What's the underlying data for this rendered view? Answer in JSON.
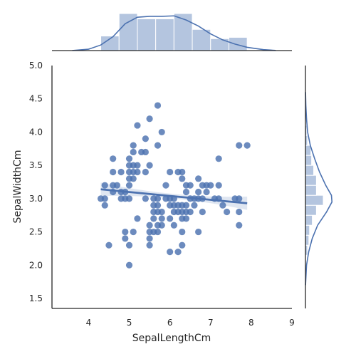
{
  "chart_data": {
    "type": "scatter",
    "kind": "jointplot-regression",
    "xlabel": "SepalLengthCm",
    "ylabel": "SepalWidthCm",
    "xlim": [
      3.1,
      9.0
    ],
    "ylim": [
      1.35,
      5.0
    ],
    "xticks": [
      "4",
      "5",
      "6",
      "7",
      "8",
      "9"
    ],
    "yticks": [
      "1.5",
      "2.0",
      "2.5",
      "3.0",
      "3.5",
      "4.0",
      "4.5",
      "5.0"
    ],
    "grid": false,
    "colors": {
      "points": "#4c72b0",
      "line": "#4c72b0",
      "hist": "#a7bbd9",
      "axes": "#262626"
    },
    "points": [
      [
        4.3,
        3.0
      ],
      [
        4.4,
        2.9
      ],
      [
        4.4,
        3.0
      ],
      [
        4.4,
        3.2
      ],
      [
        4.5,
        2.3
      ],
      [
        4.6,
        3.1
      ],
      [
        4.6,
        3.4
      ],
      [
        4.6,
        3.6
      ],
      [
        4.6,
        3.2
      ],
      [
        4.7,
        3.2
      ],
      [
        4.8,
        3.0
      ],
      [
        4.8,
        3.4
      ],
      [
        4.8,
        3.1
      ],
      [
        4.9,
        3.0
      ],
      [
        4.9,
        3.1
      ],
      [
        4.9,
        2.4
      ],
      [
        4.9,
        2.5
      ],
      [
        5.0,
        3.6
      ],
      [
        5.0,
        3.4
      ],
      [
        5.0,
        3.0
      ],
      [
        5.0,
        3.3
      ],
      [
        5.0,
        3.5
      ],
      [
        5.0,
        3.2
      ],
      [
        5.0,
        2.0
      ],
      [
        5.0,
        2.3
      ],
      [
        5.1,
        3.5
      ],
      [
        5.1,
        3.8
      ],
      [
        5.1,
        3.7
      ],
      [
        5.1,
        3.3
      ],
      [
        5.1,
        3.4
      ],
      [
        5.1,
        2.5
      ],
      [
        5.2,
        3.5
      ],
      [
        5.2,
        3.4
      ],
      [
        5.2,
        4.1
      ],
      [
        5.2,
        2.7
      ],
      [
        5.3,
        3.7
      ],
      [
        5.4,
        3.9
      ],
      [
        5.4,
        3.7
      ],
      [
        5.4,
        3.4
      ],
      [
        5.4,
        3.0
      ],
      [
        5.5,
        4.2
      ],
      [
        5.5,
        3.5
      ],
      [
        5.5,
        2.3
      ],
      [
        5.5,
        2.4
      ],
      [
        5.5,
        2.6
      ],
      [
        5.5,
        2.5
      ],
      [
        5.6,
        2.9
      ],
      [
        5.6,
        3.0
      ],
      [
        5.6,
        2.5
      ],
      [
        5.6,
        2.7
      ],
      [
        5.6,
        2.8
      ],
      [
        5.7,
        4.4
      ],
      [
        5.7,
        3.8
      ],
      [
        5.7,
        2.8
      ],
      [
        5.7,
        2.6
      ],
      [
        5.7,
        3.0
      ],
      [
        5.7,
        2.9
      ],
      [
        5.7,
        2.5
      ],
      [
        5.8,
        4.0
      ],
      [
        5.8,
        2.7
      ],
      [
        5.8,
        2.6
      ],
      [
        5.8,
        2.8
      ],
      [
        5.9,
        3.0
      ],
      [
        5.9,
        3.2
      ],
      [
        6.0,
        2.2
      ],
      [
        6.0,
        2.9
      ],
      [
        6.0,
        2.7
      ],
      [
        6.0,
        3.4
      ],
      [
        6.0,
        3.0
      ],
      [
        6.1,
        2.8
      ],
      [
        6.1,
        2.9
      ],
      [
        6.1,
        3.0
      ],
      [
        6.1,
        2.6
      ],
      [
        6.2,
        2.2
      ],
      [
        6.2,
        2.9
      ],
      [
        6.2,
        2.8
      ],
      [
        6.2,
        3.4
      ],
      [
        6.3,
        3.3
      ],
      [
        6.3,
        2.5
      ],
      [
        6.3,
        2.3
      ],
      [
        6.3,
        2.7
      ],
      [
        6.3,
        2.9
      ],
      [
        6.3,
        2.8
      ],
      [
        6.3,
        3.4
      ],
      [
        6.4,
        3.2
      ],
      [
        6.4,
        2.9
      ],
      [
        6.4,
        2.7
      ],
      [
        6.4,
        2.8
      ],
      [
        6.4,
        3.1
      ],
      [
        6.5,
        2.8
      ],
      [
        6.5,
        3.0
      ],
      [
        6.5,
        3.2
      ],
      [
        6.6,
        2.9
      ],
      [
        6.6,
        3.0
      ],
      [
        6.7,
        3.1
      ],
      [
        6.7,
        3.0
      ],
      [
        6.7,
        2.5
      ],
      [
        6.7,
        3.3
      ],
      [
        6.8,
        2.8
      ],
      [
        6.8,
        3.0
      ],
      [
        6.8,
        3.2
      ],
      [
        6.9,
        3.1
      ],
      [
        6.9,
        3.2
      ],
      [
        7.0,
        3.2
      ],
      [
        7.1,
        3.0
      ],
      [
        7.2,
        3.6
      ],
      [
        7.2,
        3.2
      ],
      [
        7.2,
        3.0
      ],
      [
        7.3,
        2.9
      ],
      [
        7.4,
        2.8
      ],
      [
        7.6,
        3.0
      ],
      [
        7.7,
        3.8
      ],
      [
        7.7,
        2.6
      ],
      [
        7.7,
        2.8
      ],
      [
        7.7,
        3.0
      ],
      [
        7.9,
        3.8
      ]
    ],
    "regression": {
      "x": [
        4.3,
        7.9
      ],
      "y": [
        3.14,
        2.93
      ],
      "ci_halfwidth_ends": 0.1,
      "ci_halfwidth_mid": 0.035
    },
    "x_hist": {
      "edges": [
        4.3,
        4.75,
        5.2,
        5.65,
        6.1,
        6.55,
        7.0,
        7.45,
        7.9
      ],
      "counts": [
        11,
        28,
        24,
        24,
        28,
        16,
        9,
        10
      ]
    },
    "y_hist": {
      "edges": [
        2.0,
        2.15,
        2.3,
        2.45,
        2.6,
        2.75,
        2.9,
        3.05,
        3.2,
        3.35,
        3.5,
        3.65,
        3.8,
        3.95,
        4.1,
        4.25,
        4.4
      ],
      "counts": [
        1,
        3,
        5,
        6,
        10,
        16,
        26,
        16,
        16,
        12,
        9,
        8,
        3,
        2,
        1,
        1
      ]
    },
    "x_kde": [
      [
        3.6,
        0.002
      ],
      [
        4.0,
        0.03
      ],
      [
        4.3,
        0.12
      ],
      [
        4.6,
        0.3
      ],
      [
        4.9,
        0.58
      ],
      [
        5.2,
        0.72
      ],
      [
        5.5,
        0.74
      ],
      [
        5.8,
        0.74
      ],
      [
        6.1,
        0.75
      ],
      [
        6.4,
        0.66
      ],
      [
        6.7,
        0.53
      ],
      [
        7.0,
        0.36
      ],
      [
        7.3,
        0.23
      ],
      [
        7.6,
        0.14
      ],
      [
        7.9,
        0.07
      ],
      [
        8.3,
        0.02
      ],
      [
        8.6,
        0.003
      ]
    ],
    "y_kde": [
      [
        1.7,
        0.003
      ],
      [
        2.0,
        0.04
      ],
      [
        2.2,
        0.12
      ],
      [
        2.4,
        0.25
      ],
      [
        2.6,
        0.45
      ],
      [
        2.8,
        0.78
      ],
      [
        2.95,
        0.98
      ],
      [
        3.05,
        0.96
      ],
      [
        3.2,
        0.75
      ],
      [
        3.4,
        0.52
      ],
      [
        3.6,
        0.34
      ],
      [
        3.8,
        0.18
      ],
      [
        4.0,
        0.08
      ],
      [
        4.2,
        0.04
      ],
      [
        4.4,
        0.015
      ],
      [
        4.6,
        0.003
      ]
    ]
  }
}
